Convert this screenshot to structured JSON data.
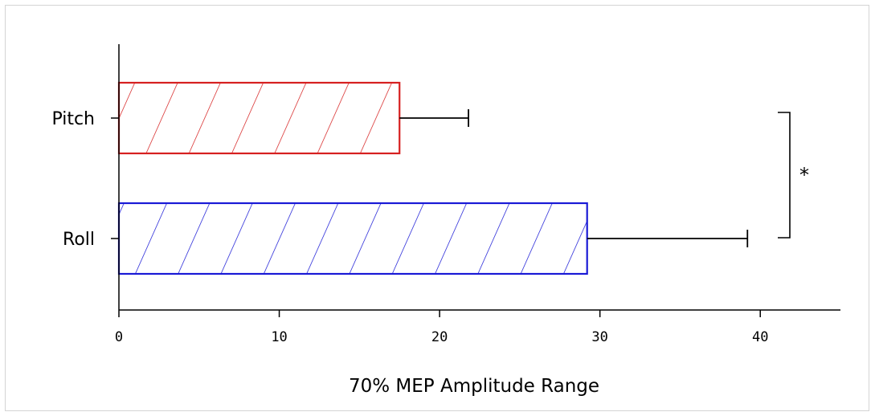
{
  "chart_data": {
    "type": "bar",
    "orientation": "horizontal",
    "title": "",
    "xlabel": "70% MEP Amplitude Range",
    "ylabel": "",
    "xlim": [
      0,
      45
    ],
    "xticks": [
      0,
      10,
      20,
      30,
      40
    ],
    "categories": [
      "Pitch",
      "Roll"
    ],
    "values": [
      17.5,
      29.2
    ],
    "error_upper": [
      21.8,
      39.2
    ],
    "bar_colors": [
      "#d62020",
      "#1a1ad6"
    ],
    "hatch": "diagonal",
    "grid": false,
    "legend": "none",
    "annotations": [
      {
        "text": "*",
        "between": [
          "Pitch",
          "Roll"
        ]
      }
    ]
  }
}
